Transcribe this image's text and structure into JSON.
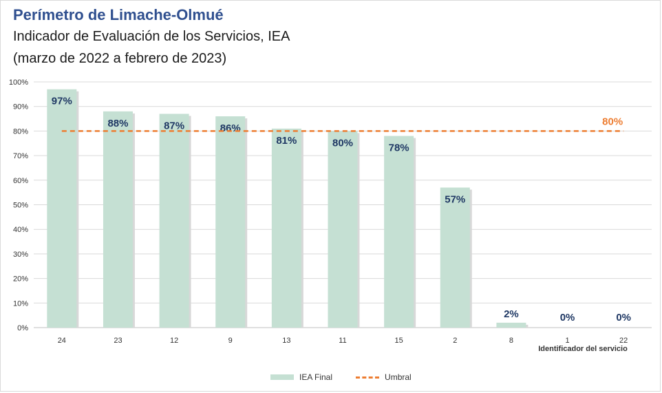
{
  "header": {
    "title": "Perímetro de Limache-Olmué",
    "subtitle": "Indicador de Evaluación de los Servicios, IEA",
    "period": "(marzo de 2022 a febrero de 2023)"
  },
  "legend": {
    "bar_label": "IEA Final",
    "line_label": "Umbral"
  },
  "colors": {
    "bar": "#c5e0d3",
    "bar_label": "#1f3864",
    "threshold": "#ed7d31",
    "grid": "#d9d9d9",
    "axis_text": "#333333"
  },
  "chart_data": {
    "type": "bar",
    "categories": [
      "24",
      "23",
      "12",
      "9",
      "13",
      "11",
      "15",
      "2",
      "8",
      "1",
      "22"
    ],
    "series": [
      {
        "name": "IEA Final",
        "values": [
          97,
          88,
          87,
          86,
          81,
          80,
          78,
          57,
          2,
          0,
          0
        ]
      }
    ],
    "threshold": {
      "name": "Umbral",
      "value": 80,
      "label": "80%"
    },
    "xlabel": "Identificador del servicio",
    "ylabel": "",
    "ylim": [
      0,
      100
    ],
    "yticks": [
      "0%",
      "10%",
      "20%",
      "30%",
      "40%",
      "50%",
      "60%",
      "70%",
      "80%",
      "90%",
      "100%"
    ],
    "value_labels": [
      "97%",
      "88%",
      "87%",
      "86%",
      "81%",
      "80%",
      "78%",
      "57%",
      "2%",
      "0%",
      "0%"
    ],
    "grid": true,
    "legend_position": "bottom"
  }
}
